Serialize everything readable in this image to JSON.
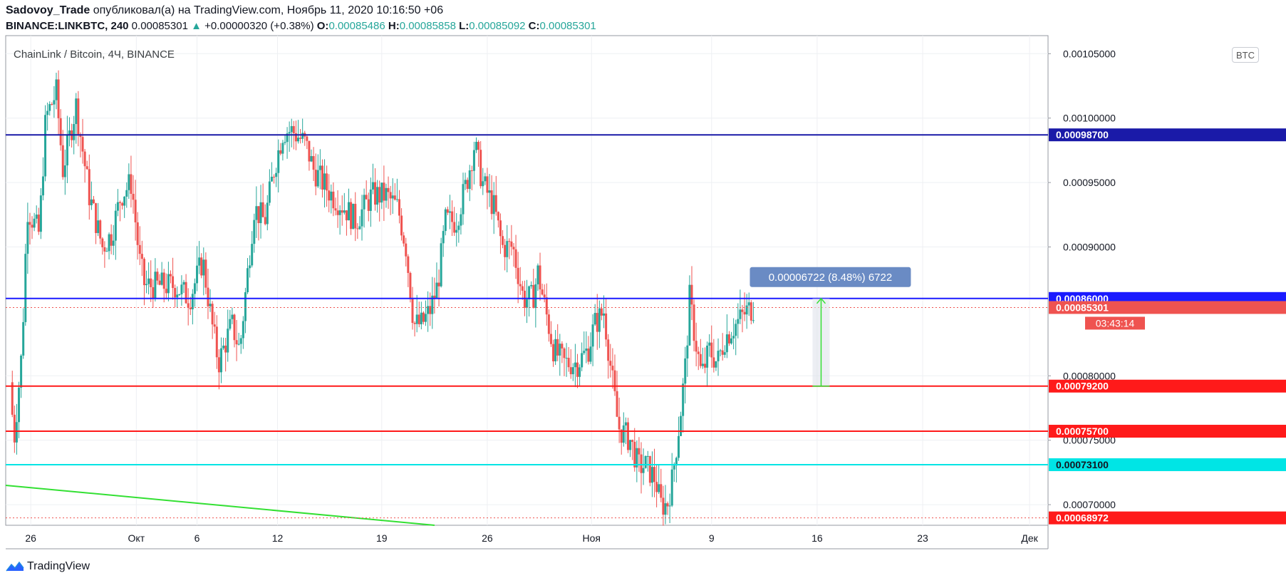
{
  "header": {
    "author": "Sadovoy_Trade",
    "published_text": " опубликовал(а) на TradingView.com, Ноябрь 11, 2020 10:16:50 +06",
    "symbol": "BINANCE:LINKBTC, 240",
    "last": " 0.00085301 ",
    "change_arrow": "▲",
    "change": " +0.00000320 (+0.38%) ",
    "o_label": "O:",
    "o_value": "0.00085486",
    "h_label": " H:",
    "h_value": "0.00085858",
    "l_label": " L:",
    "l_value": "0.00085092",
    "c_label": " C:",
    "c_value": "0.00085301"
  },
  "branding": {
    "name": "TradingView",
    "icon": "tradingview-logo-icon"
  },
  "currency_badge": "BTC",
  "chart_data": {
    "type": "candlestick",
    "title": "ChainLink / Bitcoin, 4Ч, BINANCE",
    "y_range": [
      0.000684,
      0.001064
    ],
    "x_range": [
      -0.5,
      78.5
    ],
    "y_ticks": [
      {
        "value": 0.001,
        "label": "0.00100000"
      },
      {
        "value": 0.00095,
        "label": "0.00095000"
      },
      {
        "value": 0.0009,
        "label": "0.00090000"
      },
      {
        "value": 0.0008,
        "label": "0.00080000"
      },
      {
        "value": 0.00075,
        "label": "0.00075000"
      },
      {
        "value": 0.0007,
        "label": "0.00070000"
      },
      {
        "value": 0.00105,
        "label": "0.00105000"
      }
    ],
    "x_ticks": [
      {
        "day": 1.4,
        "label": "26"
      },
      {
        "day": 9.4,
        "label": "Окт"
      },
      {
        "day": 14.0,
        "label": "6"
      },
      {
        "day": 20.1,
        "label": "12"
      },
      {
        "day": 28.0,
        "label": "19"
      },
      {
        "day": 36.0,
        "label": "26"
      },
      {
        "day": 43.9,
        "label": "Ноя"
      },
      {
        "day": 53.0,
        "label": "9"
      },
      {
        "day": 61.0,
        "label": "16"
      },
      {
        "day": 69.0,
        "label": "23"
      },
      {
        "day": 77.1,
        "label": "Дек"
      }
    ],
    "ohlc_anchors": [
      [
        0.0,
        0.000795
      ],
      [
        0.3,
        0.00075
      ],
      [
        0.9,
        0.00082
      ],
      [
        1.3,
        0.00093
      ],
      [
        2.2,
        0.00091
      ],
      [
        2.7,
        0.001
      ],
      [
        3.5,
        0.00102
      ],
      [
        4.0,
        0.00096
      ],
      [
        5.0,
        0.00101
      ],
      [
        6.0,
        0.00094
      ],
      [
        7.0,
        0.0009
      ],
      [
        7.7,
        0.00091
      ],
      [
        8.4,
        0.00094
      ],
      [
        9.2,
        0.00095
      ],
      [
        9.8,
        0.00089
      ],
      [
        10.2,
        0.00087
      ],
      [
        11.0,
        0.00087
      ],
      [
        12.5,
        0.00087
      ],
      [
        13.6,
        0.00086
      ],
      [
        14.6,
        0.00089
      ],
      [
        15.3,
        0.00084
      ],
      [
        15.8,
        0.00081
      ],
      [
        16.8,
        0.00084
      ],
      [
        17.4,
        0.00082
      ],
      [
        17.9,
        0.00087
      ],
      [
        18.5,
        0.00093
      ],
      [
        19.3,
        0.00092
      ],
      [
        20.0,
        0.00096
      ],
      [
        20.7,
        0.00099
      ],
      [
        21.4,
        0.00099
      ],
      [
        22.4,
        0.00098
      ],
      [
        23.0,
        0.00096
      ],
      [
        24.4,
        0.00094
      ],
      [
        25.4,
        0.00093
      ],
      [
        26.2,
        0.00092
      ],
      [
        27.4,
        0.00094
      ],
      [
        28.5,
        0.00094
      ],
      [
        29.4,
        0.00093
      ],
      [
        30.0,
        0.0009
      ],
      [
        30.6,
        0.00084
      ],
      [
        31.2,
        0.00084
      ],
      [
        31.8,
        0.00085
      ],
      [
        32.4,
        0.00087
      ],
      [
        33.0,
        0.00092
      ],
      [
        33.8,
        0.00092
      ],
      [
        34.6,
        0.00095
      ],
      [
        35.2,
        0.00098
      ],
      [
        35.8,
        0.00095
      ],
      [
        36.7,
        0.00093
      ],
      [
        37.3,
        0.0009
      ],
      [
        38.1,
        0.0009
      ],
      [
        38.9,
        0.00086
      ],
      [
        39.6,
        0.00086
      ],
      [
        40.0,
        0.00088
      ],
      [
        40.6,
        0.00085
      ],
      [
        41.2,
        0.00082
      ],
      [
        42.0,
        0.00081
      ],
      [
        43.0,
        0.00081
      ],
      [
        43.8,
        0.00082
      ],
      [
        44.3,
        0.00084
      ],
      [
        45.0,
        0.00085
      ],
      [
        45.6,
        0.0008
      ],
      [
        46.1,
        0.00076
      ],
      [
        47.0,
        0.00075
      ],
      [
        47.6,
        0.00073
      ],
      [
        48.2,
        0.00073
      ],
      [
        48.9,
        0.00072
      ],
      [
        49.3,
        0.0007
      ],
      [
        49.8,
        0.0007
      ],
      [
        50.2,
        0.00072
      ],
      [
        50.8,
        0.00077
      ],
      [
        51.2,
        0.00081
      ],
      [
        51.5,
        0.00086
      ],
      [
        51.9,
        0.00083
      ],
      [
        52.4,
        0.0008
      ],
      [
        53.0,
        0.00082
      ],
      [
        53.6,
        0.00081
      ],
      [
        54.2,
        0.00083
      ],
      [
        55.0,
        0.00084
      ],
      [
        55.8,
        0.00085
      ],
      [
        56.3,
        0.000853
      ]
    ],
    "horizontal_levels": [
      {
        "price": 0.000987,
        "label": "0.00098700",
        "color": "#1a1aa8"
      },
      {
        "price": 0.00086,
        "label": "0.00086000",
        "color": "#1a1aff"
      },
      {
        "price": 0.000792,
        "label": "0.00079200",
        "color": "#ff1a1a"
      },
      {
        "price": 0.000757,
        "label": "0.00075700",
        "color": "#ff1a1a"
      },
      {
        "price": 0.000731,
        "label": "0.00073100",
        "color": "#00e5e5"
      }
    ],
    "dotted_levels": [
      {
        "price": 0.00085301,
        "color": "#ef5350"
      },
      {
        "price": 0.00068972,
        "color": "#ef5350"
      }
    ],
    "price_labels": [
      {
        "price": 0.00085301,
        "label": "0.00085301",
        "color": "#ef5350"
      },
      {
        "price": 0.00068972,
        "label": "0.00068972",
        "color": "#ff1a1a"
      }
    ],
    "countdown": {
      "label": "03:43:14",
      "color": "#ef5350"
    },
    "trendline": {
      "from": [
        -0.5,
        0.000715
      ],
      "to": [
        32.0,
        0.000684
      ],
      "color": "#33e033"
    },
    "measurement": {
      "day": 61.3,
      "from": 0.000792,
      "to": 0.00086,
      "label": "0.00006722 (8.48%) 6722",
      "label_color": "#6a8bc4",
      "line_color": "#33e033"
    },
    "up_color": "#26a69a",
    "down_color": "#ef5350"
  }
}
